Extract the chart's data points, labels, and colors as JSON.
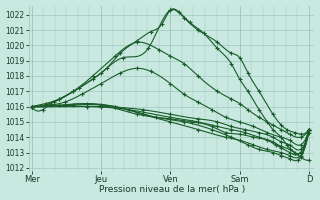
{
  "xlabel": "Pression niveau de la mer( hPa )",
  "ylim": [
    1011.8,
    1022.6
  ],
  "yticks": [
    1012,
    1013,
    1014,
    1015,
    1016,
    1017,
    1018,
    1019,
    1020,
    1021,
    1022
  ],
  "day_labels": [
    "Mer",
    "Jeu",
    "Ven",
    "Sam",
    "D"
  ],
  "day_positions": [
    0,
    0.25,
    0.5,
    0.75,
    1.0
  ],
  "bg_color": "#c8e8e0",
  "grid_color": "#a0c8c0",
  "line_color": "#1a5c2a",
  "series": [
    {
      "points": [
        [
          0,
          1016.0
        ],
        [
          0.04,
          1015.8
        ],
        [
          0.07,
          1016.2
        ],
        [
          0.1,
          1016.5
        ],
        [
          0.15,
          1017.0
        ],
        [
          0.22,
          1017.8
        ],
        [
          0.27,
          1018.5
        ],
        [
          0.32,
          1019.5
        ],
        [
          0.38,
          1020.3
        ],
        [
          0.43,
          1020.9
        ],
        [
          0.47,
          1021.4
        ],
        [
          0.5,
          1022.3
        ],
        [
          0.53,
          1022.2
        ],
        [
          0.57,
          1021.5
        ],
        [
          0.62,
          1020.8
        ],
        [
          0.67,
          1019.8
        ],
        [
          0.72,
          1018.8
        ],
        [
          0.75,
          1017.8
        ],
        [
          0.78,
          1017.0
        ],
        [
          0.82,
          1015.8
        ],
        [
          0.85,
          1015.0
        ],
        [
          0.87,
          1014.5
        ],
        [
          0.9,
          1014.0
        ],
        [
          0.92,
          1013.5
        ],
        [
          0.95,
          1013.0
        ],
        [
          0.97,
          1012.7
        ],
        [
          1.0,
          1012.5
        ]
      ]
    },
    {
      "points": [
        [
          0,
          1016.0
        ],
        [
          0.05,
          1016.2
        ],
        [
          0.1,
          1016.5
        ],
        [
          0.17,
          1017.2
        ],
        [
          0.25,
          1018.2
        ],
        [
          0.33,
          1019.2
        ],
        [
          0.42,
          1019.8
        ],
        [
          0.5,
          1022.3
        ],
        [
          0.55,
          1021.8
        ],
        [
          0.6,
          1021.0
        ],
        [
          0.67,
          1020.2
        ],
        [
          0.72,
          1019.5
        ],
        [
          0.75,
          1019.2
        ],
        [
          0.78,
          1018.2
        ],
        [
          0.82,
          1017.0
        ],
        [
          0.87,
          1015.5
        ],
        [
          0.9,
          1014.8
        ],
        [
          0.92,
          1014.5
        ],
        [
          0.95,
          1014.3
        ],
        [
          0.97,
          1014.2
        ],
        [
          1.0,
          1014.5
        ]
      ]
    },
    {
      "points": [
        [
          0,
          1016.0
        ],
        [
          0.08,
          1016.3
        ],
        [
          0.15,
          1017.0
        ],
        [
          0.22,
          1018.0
        ],
        [
          0.3,
          1019.3
        ],
        [
          0.38,
          1020.2
        ],
        [
          0.46,
          1019.7
        ],
        [
          0.5,
          1019.3
        ],
        [
          0.55,
          1018.8
        ],
        [
          0.6,
          1018.0
        ],
        [
          0.67,
          1017.0
        ],
        [
          0.72,
          1016.5
        ],
        [
          0.75,
          1016.2
        ],
        [
          0.78,
          1015.8
        ],
        [
          0.82,
          1015.3
        ],
        [
          0.87,
          1014.8
        ],
        [
          0.9,
          1014.5
        ],
        [
          0.93,
          1014.2
        ],
        [
          0.97,
          1014.0
        ],
        [
          1.0,
          1014.5
        ]
      ]
    },
    {
      "points": [
        [
          0,
          1016.0
        ],
        [
          0.07,
          1016.1
        ],
        [
          0.12,
          1016.3
        ],
        [
          0.18,
          1016.8
        ],
        [
          0.25,
          1017.5
        ],
        [
          0.32,
          1018.2
        ],
        [
          0.38,
          1018.5
        ],
        [
          0.43,
          1018.3
        ],
        [
          0.5,
          1017.5
        ],
        [
          0.55,
          1016.8
        ],
        [
          0.6,
          1016.3
        ],
        [
          0.65,
          1015.8
        ],
        [
          0.7,
          1015.3
        ],
        [
          0.75,
          1015.0
        ],
        [
          0.8,
          1014.7
        ],
        [
          0.85,
          1014.3
        ],
        [
          0.9,
          1014.0
        ],
        [
          0.93,
          1013.8
        ],
        [
          0.97,
          1013.5
        ],
        [
          1.0,
          1014.5
        ]
      ]
    },
    {
      "points": [
        [
          0,
          1016.0
        ],
        [
          0.1,
          1016.1
        ],
        [
          0.2,
          1016.2
        ],
        [
          0.3,
          1016.0
        ],
        [
          0.4,
          1015.5
        ],
        [
          0.5,
          1015.0
        ],
        [
          0.6,
          1014.5
        ],
        [
          0.7,
          1014.0
        ],
        [
          0.75,
          1013.8
        ],
        [
          0.8,
          1013.5
        ],
        [
          0.85,
          1013.2
        ],
        [
          0.9,
          1013.0
        ],
        [
          0.93,
          1012.8
        ],
        [
          0.97,
          1012.8
        ],
        [
          1.0,
          1014.3
        ]
      ]
    },
    {
      "points": [
        [
          0,
          1016.0
        ],
        [
          0.12,
          1016.1
        ],
        [
          0.25,
          1016.1
        ],
        [
          0.38,
          1015.5
        ],
        [
          0.5,
          1015.2
        ],
        [
          0.58,
          1015.0
        ],
        [
          0.65,
          1014.7
        ],
        [
          0.7,
          1014.3
        ],
        [
          0.75,
          1014.2
        ],
        [
          0.8,
          1014.0
        ],
        [
          0.85,
          1013.8
        ],
        [
          0.88,
          1013.5
        ],
        [
          0.9,
          1013.3
        ],
        [
          0.93,
          1013.0
        ],
        [
          0.97,
          1013.0
        ],
        [
          1.0,
          1014.5
        ]
      ]
    },
    {
      "points": [
        [
          0,
          1016.0
        ],
        [
          0.15,
          1016.1
        ],
        [
          0.3,
          1016.0
        ],
        [
          0.45,
          1015.3
        ],
        [
          0.55,
          1015.0
        ],
        [
          0.65,
          1014.5
        ],
        [
          0.72,
          1014.0
        ],
        [
          0.78,
          1013.5
        ],
        [
          0.82,
          1013.2
        ],
        [
          0.87,
          1013.0
        ],
        [
          0.9,
          1012.8
        ],
        [
          0.93,
          1012.6
        ],
        [
          0.96,
          1012.5
        ],
        [
          1.0,
          1014.5
        ]
      ]
    },
    {
      "points": [
        [
          0,
          1016.0
        ],
        [
          0.2,
          1016.0
        ],
        [
          0.35,
          1015.8
        ],
        [
          0.5,
          1015.3
        ],
        [
          0.6,
          1015.0
        ],
        [
          0.67,
          1014.7
        ],
        [
          0.72,
          1014.5
        ],
        [
          0.77,
          1014.3
        ],
        [
          0.82,
          1014.0
        ],
        [
          0.87,
          1013.7
        ],
        [
          0.9,
          1013.4
        ],
        [
          0.93,
          1013.2
        ],
        [
          0.97,
          1013.0
        ],
        [
          1.0,
          1014.5
        ]
      ]
    },
    {
      "points": [
        [
          0,
          1016.0
        ],
        [
          0.25,
          1016.0
        ],
        [
          0.4,
          1015.8
        ],
        [
          0.5,
          1015.5
        ],
        [
          0.6,
          1015.2
        ],
        [
          0.67,
          1015.0
        ],
        [
          0.72,
          1014.7
        ],
        [
          0.77,
          1014.5
        ],
        [
          0.82,
          1014.3
        ],
        [
          0.87,
          1014.0
        ],
        [
          0.9,
          1013.7
        ],
        [
          0.93,
          1013.5
        ],
        [
          0.97,
          1013.2
        ],
        [
          1.0,
          1014.5
        ]
      ]
    }
  ]
}
